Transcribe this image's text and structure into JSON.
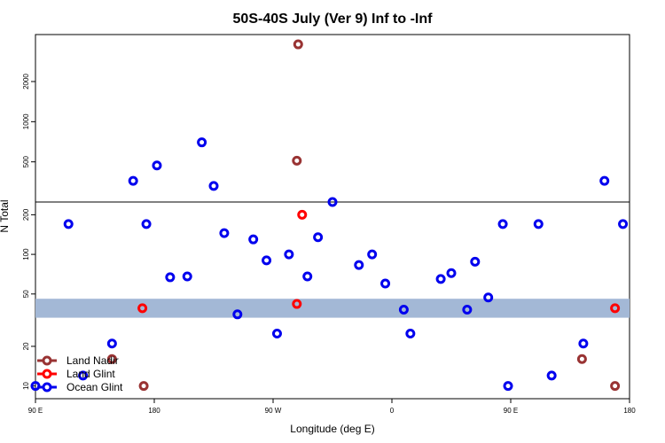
{
  "chart_data": {
    "type": "scatter",
    "title": "50S-40S July (Ver 9)   Inf to -Inf",
    "xlabel": "Longitude (deg E)",
    "ylabel": "N Total",
    "x_ticks": [
      {
        "value": 90,
        "label": "90 E"
      },
      {
        "value": 180,
        "label": "180"
      },
      {
        "value": 270,
        "label": "90 W"
      },
      {
        "value": 360,
        "label": "0"
      },
      {
        "value": 450,
        "label": "90 E"
      },
      {
        "value": 540,
        "label": "180"
      }
    ],
    "xlim": [
      90,
      540
    ],
    "y_ticks": [
      10,
      20,
      50,
      100,
      200,
      500,
      1000,
      2000
    ],
    "y_scale": "log, with a compressed upper panel above the line at about 250",
    "y_break": 250,
    "ylim": [
      8,
      4500
    ],
    "band": {
      "y_low": 33,
      "y_high": 46,
      "color": "#a3b8d6"
    },
    "legend_position": "bottom-left",
    "series": [
      {
        "name": "Land Nadir",
        "color": "#993333",
        "points": [
          [
            289,
            3800
          ],
          [
            288,
            510
          ],
          [
            148,
            16
          ],
          [
            504,
            16
          ],
          [
            172,
            10
          ],
          [
            529,
            10
          ]
        ]
      },
      {
        "name": "Land Glint",
        "color": "#ff0000",
        "points": [
          [
            292,
            200
          ],
          [
            288,
            42
          ],
          [
            171,
            39
          ],
          [
            529,
            39
          ]
        ]
      },
      {
        "name": "Ocean Glint",
        "color": "#0000ee",
        "points": [
          [
            90,
            10
          ],
          [
            126,
            12
          ],
          [
            148,
            21
          ],
          [
            115,
            170
          ],
          [
            164,
            360
          ],
          [
            174,
            170
          ],
          [
            182,
            470
          ],
          [
            192,
            67
          ],
          [
            205,
            68
          ],
          [
            216,
            700
          ],
          [
            225,
            330
          ],
          [
            233,
            145
          ],
          [
            243,
            35
          ],
          [
            255,
            130
          ],
          [
            265,
            90
          ],
          [
            273,
            25
          ],
          [
            282,
            100
          ],
          [
            296,
            68
          ],
          [
            304,
            135
          ],
          [
            315,
            250
          ],
          [
            335,
            83
          ],
          [
            345,
            100
          ],
          [
            355,
            60
          ],
          [
            369,
            38
          ],
          [
            374,
            25
          ],
          [
            397,
            65
          ],
          [
            405,
            72
          ],
          [
            417,
            38
          ],
          [
            423,
            88
          ],
          [
            433,
            47
          ],
          [
            444,
            170
          ],
          [
            448,
            10
          ],
          [
            471,
            170
          ],
          [
            481,
            12
          ],
          [
            505,
            21
          ],
          [
            521,
            360
          ],
          [
            535,
            170
          ]
        ]
      }
    ]
  }
}
